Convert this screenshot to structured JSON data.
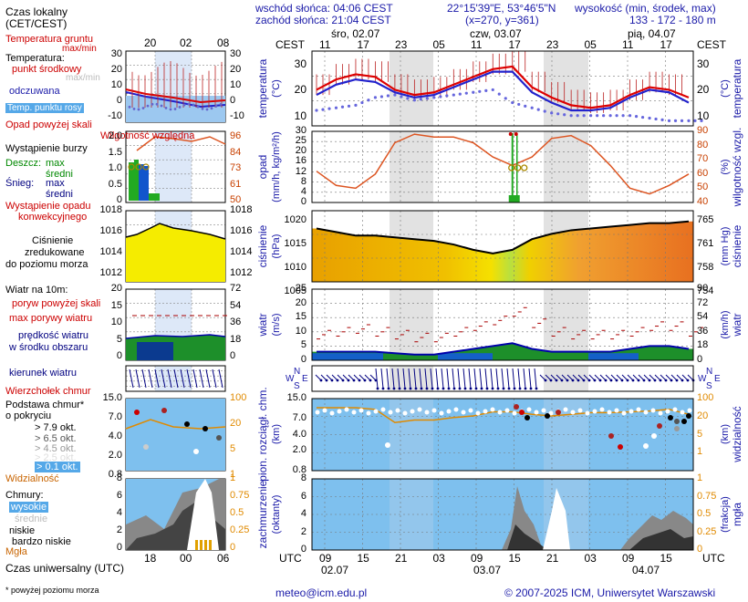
{
  "header": {
    "sunrise": "wschód słońca: 04:06 CEST",
    "sunset": "zachód słońca: 21:04 CEST",
    "coords": "22°15'39\"E, 53°46'5\"N",
    "grid": "(x=270, y=361)",
    "elev_title": "wysokość (min, środek, max)",
    "elev_values": "133 - 172 - 180 m"
  },
  "time_axis": {
    "zone_top": "CEST",
    "zone_bottom": "UTC",
    "days_top": [
      "śro, 02.07",
      "czw, 03.07",
      "pią, 04.07"
    ],
    "hours_top": [
      "11",
      "17",
      "23",
      "05",
      "11",
      "17",
      "23",
      "05",
      "11",
      "17"
    ],
    "hours_bottom": [
      "09",
      "15",
      "21",
      "03",
      "09",
      "15",
      "21",
      "03",
      "09",
      "15"
    ],
    "days_bottom": [
      "02.07",
      "03.07",
      "04.07"
    ]
  },
  "legend": {
    "local_time": "Czas lokalny",
    "local_time_sub": "(CET/CEST)",
    "local_hours": [
      "20",
      "02",
      "08"
    ],
    "utc_time": "Czas uniwersalny (UTC)",
    "utc_hours": [
      "18",
      "00",
      "06"
    ],
    "soil_temp": "Temperatura gruntu",
    "maxmin": "max/min",
    "temperature": "Temperatura:",
    "center_point": "punkt środkowy",
    "maxmin2": "max/min",
    "perceived": "odczuwana",
    "dew_point": "Temp. punktu rosy",
    "precip_above": "Opad powyżej skali",
    "storm": "Wystąpienie burzy",
    "humidity": "Wilgotność względna",
    "rain": "Deszcz:",
    "rain_max": "max",
    "rain_mean": "średni",
    "snow": "Śnieg:",
    "snow_max": "max",
    "snow_mean": "średni",
    "convective1": "Wystąpienie opadu",
    "convective2": "konwekcyjnego",
    "pressure1": "Ciśnienie",
    "pressure2": "zredukowane",
    "pressure3": "do poziomu morza",
    "wind10": "Wiatr na 10m:",
    "gust_above": "poryw powyżej skali",
    "gust_max": "max porywy wiatru",
    "wind_speed1": "prędkość wiatru",
    "wind_speed2": "w środku obszaru",
    "wind_dir": "kierunek wiatru",
    "cloud_top": "Wierzchołek chmur",
    "cloud_base1": "Podstawa chmur*",
    "cloud_base2": "o pokryciu",
    "okt79": "> 7.9 okt.",
    "okt65": "> 6.5 okt.",
    "okt45": "> 4.5 okt.",
    "okt25": "> 2.5 okt.",
    "okt01": "> 0.1 okt.",
    "visibility": "Widzialność",
    "clouds": "Chmury:",
    "high": "wysokie",
    "mid": "średnie",
    "low": "niskie",
    "very_low": "bardzo niskie",
    "fog": "Mgła",
    "footnote": "* powyżej poziomu morza"
  },
  "legend_axes": {
    "temp_left": [
      "30",
      "20",
      "10",
      "0",
      "-10"
    ],
    "temp_right": [
      "30",
      "20",
      "10",
      "0",
      "-10"
    ],
    "precip_left": [
      "2.0",
      "1.5",
      "1.0",
      "0.5",
      "0"
    ],
    "precip_right": [
      "96",
      "84",
      "73",
      "61",
      "50"
    ],
    "press_left": [
      "1018",
      "1016",
      "1014",
      "1012"
    ],
    "press_right": [
      "1018",
      "1016",
      "1014",
      "1012"
    ],
    "wind_left": [
      "20",
      "15",
      "10",
      "5",
      "0"
    ],
    "wind_right": [
      "72",
      "54",
      "36",
      "18",
      "0"
    ],
    "cloud_left": [
      "15.0",
      "7.0",
      "4.0",
      "2.0",
      "0.8"
    ],
    "cloud_right": [
      "100",
      "20",
      "5",
      "1"
    ],
    "cl_left": [
      "8",
      "6",
      "4",
      "2",
      "0"
    ],
    "cl_right": [
      "1",
      "0.75",
      "0.5",
      "0.25",
      "0"
    ]
  },
  "panels": {
    "temp": {
      "left_title": "temperatura",
      "left_unit": "(°C)",
      "right_title": "temperatura",
      "right_unit": "(°C)",
      "ticks": [
        "30",
        "20",
        "10"
      ]
    },
    "precip": {
      "left_title": "opad",
      "left_unit": "(mm/h, kg/m²/h)",
      "right_title": "wilgotność wzgl.",
      "right_unit": "(%)",
      "ticks_left": [
        "30",
        "25",
        "20",
        "16",
        "12",
        "8",
        "4",
        "0"
      ],
      "ticks_right": [
        "90",
        "80",
        "70",
        "60",
        "50",
        "40"
      ]
    },
    "pressure": {
      "left_title": "ciśnienie",
      "left_unit": "(hPa)",
      "right_title": "ciśnienie",
      "right_unit": "(mm Hg)",
      "ticks_left": [
        "1020",
        "1015",
        "1010",
        "1005"
      ],
      "ticks_right": [
        "765",
        "761",
        "758",
        "754"
      ]
    },
    "wind": {
      "left_title": "wiatr",
      "left_unit": "(m/s)",
      "right_title": "wiatr",
      "right_unit": "(km/h)",
      "ticks_left": [
        "25",
        "20",
        "15",
        "10",
        "5",
        "0"
      ],
      "ticks_right": [
        "90",
        "72",
        "54",
        "36",
        "18",
        "0"
      ]
    },
    "dir": {
      "compass": [
        "N",
        "W",
        "E",
        "S"
      ]
    },
    "cloudbase": {
      "left_title": "pion. rozciągł. chm.",
      "left_unit": "(km)",
      "right_title": "widzialność",
      "right_unit": "(km)",
      "ticks_left": [
        "15.0",
        "7.0",
        "4.0",
        "2.0",
        "0.8"
      ],
      "ticks_right": [
        "100",
        "20",
        "5",
        "1"
      ]
    },
    "cover": {
      "left_title": "zachmurzenie",
      "left_unit": "(oktanty)",
      "right_title": "mgła",
      "right_unit": "(frakcja)",
      "ticks_left": [
        "8",
        "6",
        "4",
        "2",
        "0"
      ],
      "ticks_right": [
        "1",
        "0.75",
        "0.5",
        "0.25",
        "0"
      ]
    }
  },
  "footer": {
    "email": "meteo@icm.edu.pl",
    "copyright": "© 2007-2025 ICM, Uniwersytet Warszawski"
  },
  "chart_data": [
    {
      "type": "line",
      "title": "temperatura",
      "ylabel": "temperatura (°C)",
      "ylim": [
        6,
        35
      ],
      "x": [
        "02.07 09",
        "02.07 12",
        "02.07 15",
        "02.07 18",
        "02.07 21",
        "03.07 00",
        "03.07 03",
        "03.07 06",
        "03.07 09",
        "03.07 12",
        "03.07 15",
        "03.07 18",
        "03.07 21",
        "04.07 00",
        "04.07 03",
        "04.07 06",
        "04.07 09",
        "04.07 12",
        "04.07 15",
        "04.07 17"
      ],
      "series": [
        {
          "values": [
            20,
            24,
            26,
            25,
            20,
            18,
            19,
            22,
            25,
            28,
            29,
            21,
            17,
            14,
            13,
            14,
            18,
            21,
            20,
            17
          ],
          "color": "#dd0000"
        },
        {
          "values": [
            18,
            22,
            24,
            23,
            19,
            17,
            18,
            21,
            24,
            27,
            27,
            19,
            15,
            12,
            12,
            13,
            17,
            20,
            19,
            15
          ],
          "color": "#2222cc"
        },
        {
          "values": [
            12,
            13,
            14,
            17,
            18,
            16,
            17,
            18,
            19,
            20,
            15,
            13,
            11,
            10,
            10,
            10,
            10,
            9,
            8,
            8
          ],
          "color": "#5555cc"
        }
      ]
    },
    {
      "type": "line",
      "title": "opad / wilgotność wzgl.",
      "ylabel": "wilgotność wzgl. (%)",
      "ylim": [
        40,
        90
      ],
      "x": [
        "02.07 09",
        "02.07 12",
        "02.07 15",
        "02.07 18",
        "02.07 21",
        "03.07 00",
        "03.07 03",
        "03.07 06",
        "03.07 09",
        "03.07 12",
        "03.07 15",
        "03.07 18",
        "03.07 21",
        "04.07 00",
        "04.07 03",
        "04.07 06",
        "04.07 09",
        "04.07 12",
        "04.07 15",
        "04.07 17"
      ],
      "series": [
        {
          "values": [
            62,
            52,
            50,
            60,
            82,
            88,
            86,
            86,
            82,
            72,
            66,
            72,
            85,
            87,
            80,
            66,
            50,
            46,
            52,
            60
          ],
          "color": "#dd5522"
        }
      ],
      "precip_max_mm_h": [
        {
          "x": "03.07 15",
          "value": 28
        }
      ],
      "precip_mean_mm_h": [
        {
          "x": "03.07 15",
          "value": 2
        }
      ]
    },
    {
      "type": "area",
      "title": "ciśnienie",
      "ylabel": "ciśnienie (hPa)",
      "ylim": [
        1005,
        1025
      ],
      "x": [
        "02.07 09",
        "02.07 12",
        "02.07 15",
        "02.07 18",
        "02.07 21",
        "03.07 00",
        "03.07 03",
        "03.07 06",
        "03.07 09",
        "03.07 12",
        "03.07 15",
        "03.07 18",
        "03.07 21",
        "04.07 00",
        "04.07 03",
        "04.07 06",
        "04.07 09",
        "04.07 12",
        "04.07 15",
        "04.07 17"
      ],
      "series": [
        {
          "values": [
            1020,
            1019,
            1018,
            1018,
            1017.5,
            1017,
            1016.5,
            1015.5,
            1014,
            1013,
            1014,
            1017,
            1018.5,
            1019.5,
            1020,
            1020.5,
            1021,
            1021.5,
            1021.5,
            1022
          ],
          "color": "#000000"
        }
      ]
    },
    {
      "type": "area",
      "title": "wiatr",
      "ylabel": "wiatr (m/s)",
      "ylim": [
        0,
        25
      ],
      "x": [
        "02.07 09",
        "02.07 12",
        "02.07 15",
        "02.07 18",
        "02.07 21",
        "03.07 00",
        "03.07 03",
        "03.07 06",
        "03.07 09",
        "03.07 12",
        "03.07 15",
        "03.07 18",
        "03.07 21",
        "04.07 00",
        "04.07 03",
        "04.07 06",
        "04.07 09",
        "04.07 12",
        "04.07 15",
        "04.07 17"
      ],
      "series": [
        {
          "values": [
            3,
            3,
            3,
            3,
            2.5,
            2,
            2,
            3,
            4,
            5,
            6,
            4,
            3,
            3,
            3,
            3,
            4,
            5,
            5,
            4
          ],
          "color": "#1155cc"
        },
        {
          "values": [
            9,
            10,
            11,
            10,
            9,
            8,
            8,
            10,
            12,
            14,
            17,
            13,
            10,
            9,
            9,
            9,
            10,
            12,
            12,
            10
          ],
          "color": "#cc0000"
        }
      ]
    },
    {
      "type": "line",
      "title": "widzialność",
      "ylabel": "widzialność (km)",
      "x": [
        "02.07 09",
        "02.07 12",
        "02.07 15",
        "02.07 18",
        "02.07 21",
        "03.07 00",
        "03.07 03",
        "03.07 06",
        "03.07 09",
        "03.07 12",
        "03.07 15",
        "03.07 18",
        "03.07 21",
        "04.07 00",
        "04.07 03",
        "04.07 06",
        "04.07 09",
        "04.07 12",
        "04.07 15",
        "04.07 17"
      ],
      "series": [
        {
          "values": [
            40,
            40,
            40,
            38,
            22,
            25,
            25,
            28,
            30,
            35,
            35,
            32,
            30,
            32,
            34,
            34,
            35,
            36,
            38,
            32
          ],
          "color": "#e08a00"
        }
      ]
    },
    {
      "type": "area",
      "title": "zachmurzenie",
      "ylabel": "zachmurzenie (oktanty)",
      "ylim": [
        0,
        8
      ],
      "x": [
        "02.07 09",
        "02.07 12",
        "02.07 15",
        "02.07 18",
        "02.07 21",
        "03.07 00",
        "03.07 03",
        "03.07 06",
        "03.07 09",
        "03.07 12",
        "03.07 15",
        "03.07 18",
        "03.07 21",
        "04.07 00",
        "04.07 03",
        "04.07 06",
        "04.07 09",
        "04.07 12",
        "04.07 15",
        "04.07 17"
      ],
      "series": [
        {
          "values": [
            0,
            0,
            0,
            0,
            0,
            0,
            0,
            0,
            0,
            0,
            7.5,
            4,
            0,
            0,
            0,
            0,
            1,
            2,
            3,
            3
          ],
          "color": "#888888"
        },
        {
          "values": [
            0,
            0,
            0,
            0,
            0,
            0,
            0,
            0,
            0,
            0,
            5,
            2,
            0,
            0,
            0,
            0,
            0.5,
            1.5,
            2.5,
            2
          ],
          "color": "#333333"
        }
      ]
    }
  ]
}
